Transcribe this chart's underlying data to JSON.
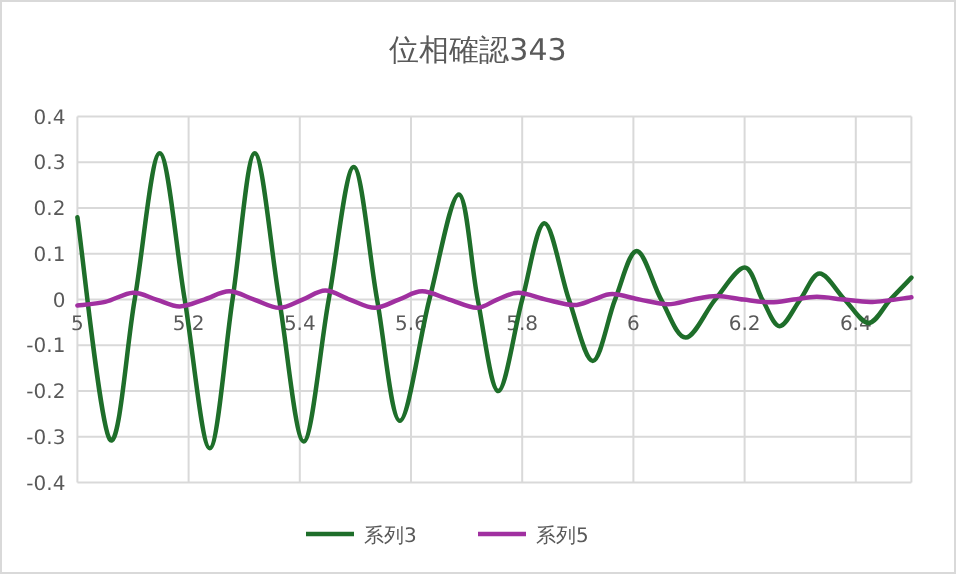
{
  "chart_data": {
    "type": "line",
    "title": "位相確認343",
    "xlim": [
      5,
      6.5
    ],
    "ylim": [
      -0.4,
      0.4
    ],
    "xticks": [
      5,
      5.2,
      5.4,
      5.6,
      5.8,
      6,
      6.2,
      6.4
    ],
    "yticks": [
      -0.4,
      -0.3,
      -0.2,
      -0.1,
      0,
      0.1,
      0.2,
      0.3,
      0.4
    ],
    "grid": true,
    "legend": "bottom",
    "series": [
      {
        "name": "系列3",
        "color": "#1e6e2a",
        "x": [
          5.0,
          5.058,
          5.103,
          5.148,
          5.193,
          5.238,
          5.279,
          5.319,
          5.363,
          5.407,
          5.452,
          5.497,
          5.539,
          5.58,
          5.633,
          5.686,
          5.72,
          5.757,
          5.8,
          5.84,
          5.884,
          5.927,
          5.967,
          6.006,
          6.05,
          6.094,
          6.147,
          6.2,
          6.232,
          6.263,
          6.3,
          6.335,
          6.38,
          6.423,
          6.462,
          6.5
        ],
        "values": [
          0.18,
          -0.305,
          0,
          0.32,
          0,
          -0.325,
          0,
          0.32,
          0,
          -0.31,
          0,
          0.29,
          0,
          -0.265,
          0,
          0.23,
          0,
          -0.2,
          0,
          0.167,
          0,
          -0.134,
          0,
          0.106,
          0,
          -0.083,
          0,
          0.07,
          0,
          -0.058,
          0,
          0.057,
          0,
          -0.051,
          0,
          0.048
        ]
      },
      {
        "name": "系列5",
        "color": "#a030a0",
        "x": [
          5.0,
          5.05,
          5.1,
          5.142,
          5.184,
          5.228,
          5.273,
          5.318,
          5.363,
          5.405,
          5.446,
          5.49,
          5.535,
          5.578,
          5.62,
          5.669,
          5.718,
          5.755,
          5.793,
          5.843,
          5.893,
          5.928,
          5.962,
          6.012,
          6.062,
          6.106,
          6.15,
          6.198,
          6.247,
          6.288,
          6.33,
          6.38,
          6.43,
          6.5
        ],
        "values": [
          -0.013,
          -0.005,
          0.015,
          0,
          -0.015,
          0,
          0.018,
          0,
          -0.018,
          0,
          0.02,
          0,
          -0.018,
          0,
          0.018,
          0,
          -0.018,
          0,
          0.015,
          0,
          -0.012,
          0,
          0.012,
          0,
          -0.01,
          0,
          0.008,
          0,
          -0.006,
          0,
          0.006,
          0,
          -0.005,
          0.005
        ]
      }
    ]
  }
}
